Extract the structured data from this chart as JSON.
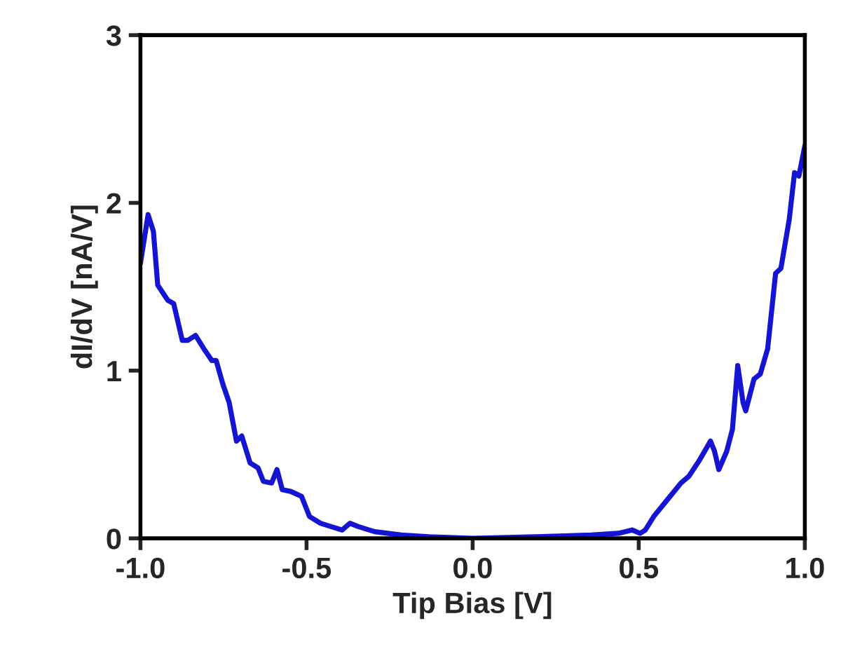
{
  "chart_data": {
    "type": "line",
    "xlabel": "Tip Bias [V]",
    "ylabel": "dI/dV [nA/V]",
    "xlim": [
      -1.0,
      1.0
    ],
    "ylim": [
      0,
      3
    ],
    "xticks": [
      {
        "value": -1.0,
        "label": "-1.0"
      },
      {
        "value": -0.5,
        "label": "-0.5"
      },
      {
        "value": 0.0,
        "label": "0.0"
      },
      {
        "value": 0.5,
        "label": "0.5"
      },
      {
        "value": 1.0,
        "label": "1.0"
      }
    ],
    "yticks": [
      0,
      1,
      2,
      3
    ],
    "grid": false,
    "marker": "none",
    "line_style": "solid",
    "series": [
      {
        "color": "#1414d2",
        "x": [
          -1.0,
          -0.977,
          -0.961,
          -0.948,
          -0.918,
          -0.9,
          -0.874,
          -0.858,
          -0.834,
          -0.809,
          -0.785,
          -0.772,
          -0.752,
          -0.733,
          -0.711,
          -0.695,
          -0.67,
          -0.646,
          -0.63,
          -0.605,
          -0.589,
          -0.573,
          -0.548,
          -0.515,
          -0.491,
          -0.458,
          -0.426,
          -0.393,
          -0.369,
          -0.344,
          -0.295,
          -0.214,
          -0.132,
          0.0,
          0.194,
          0.357,
          0.439,
          0.48,
          0.504,
          0.52,
          0.545,
          0.586,
          0.627,
          0.651,
          0.684,
          0.716,
          0.728,
          0.741,
          0.765,
          0.782,
          0.798,
          0.814,
          0.822,
          0.847,
          0.866,
          0.888,
          0.912,
          0.928,
          0.953,
          0.969,
          0.982,
          1.0
        ],
        "values": [
          1.64,
          1.93,
          1.83,
          1.51,
          1.42,
          1.4,
          1.18,
          1.18,
          1.21,
          1.13,
          1.06,
          1.06,
          0.92,
          0.81,
          0.58,
          0.61,
          0.45,
          0.42,
          0.34,
          0.33,
          0.41,
          0.29,
          0.28,
          0.25,
          0.13,
          0.09,
          0.07,
          0.05,
          0.09,
          0.07,
          0.04,
          0.02,
          0.01,
          0.0,
          0.01,
          0.02,
          0.03,
          0.05,
          0.03,
          0.05,
          0.13,
          0.23,
          0.33,
          0.37,
          0.47,
          0.58,
          0.52,
          0.41,
          0.52,
          0.65,
          1.03,
          0.81,
          0.76,
          0.95,
          0.98,
          1.13,
          1.58,
          1.61,
          1.9,
          2.18,
          2.16,
          2.34
        ]
      }
    ]
  }
}
